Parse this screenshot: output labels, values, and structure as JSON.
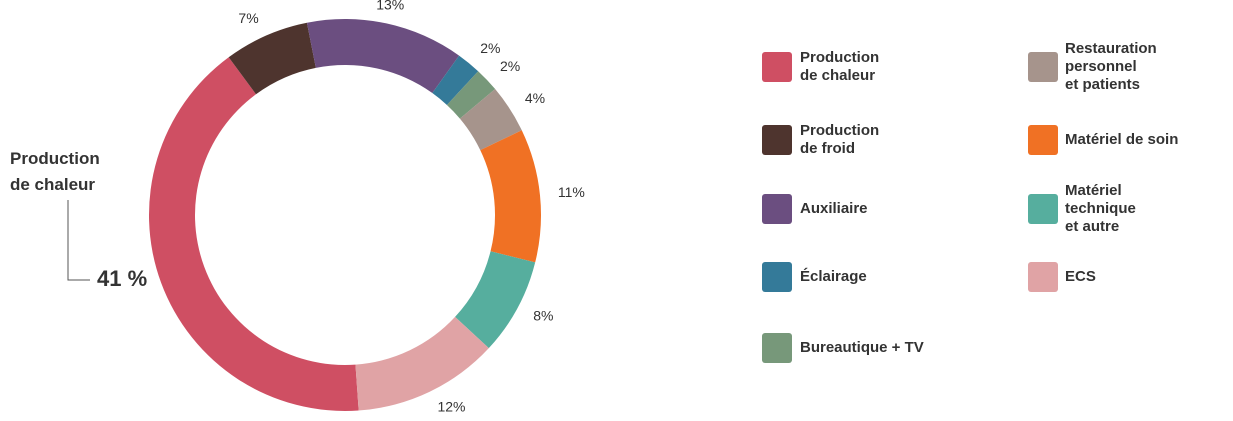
{
  "chart_data": {
    "type": "donut",
    "categories": [
      "Production\nde chaleur",
      "Production\nde froid",
      "Auxiliaire",
      "Éclairage",
      "Bureautique + TV",
      "Restauration\npersonnel\net patients",
      "Matériel de soin",
      "Matériel\ntechnique\net autre",
      "ECS"
    ],
    "values": [
      41,
      7,
      13,
      2,
      2,
      4,
      11,
      8,
      12
    ],
    "value_labels": [
      "41 %",
      "7%",
      "13%",
      "2%",
      "2%",
      "4%",
      "11%",
      "8%",
      "12%"
    ],
    "colors": [
      "#cf4f63",
      "#4e342e",
      "#6b4e80",
      "#347a99",
      "#77987a",
      "#a6948c",
      "#f07124",
      "#56ae9e",
      "#e0a3a5"
    ]
  }
}
